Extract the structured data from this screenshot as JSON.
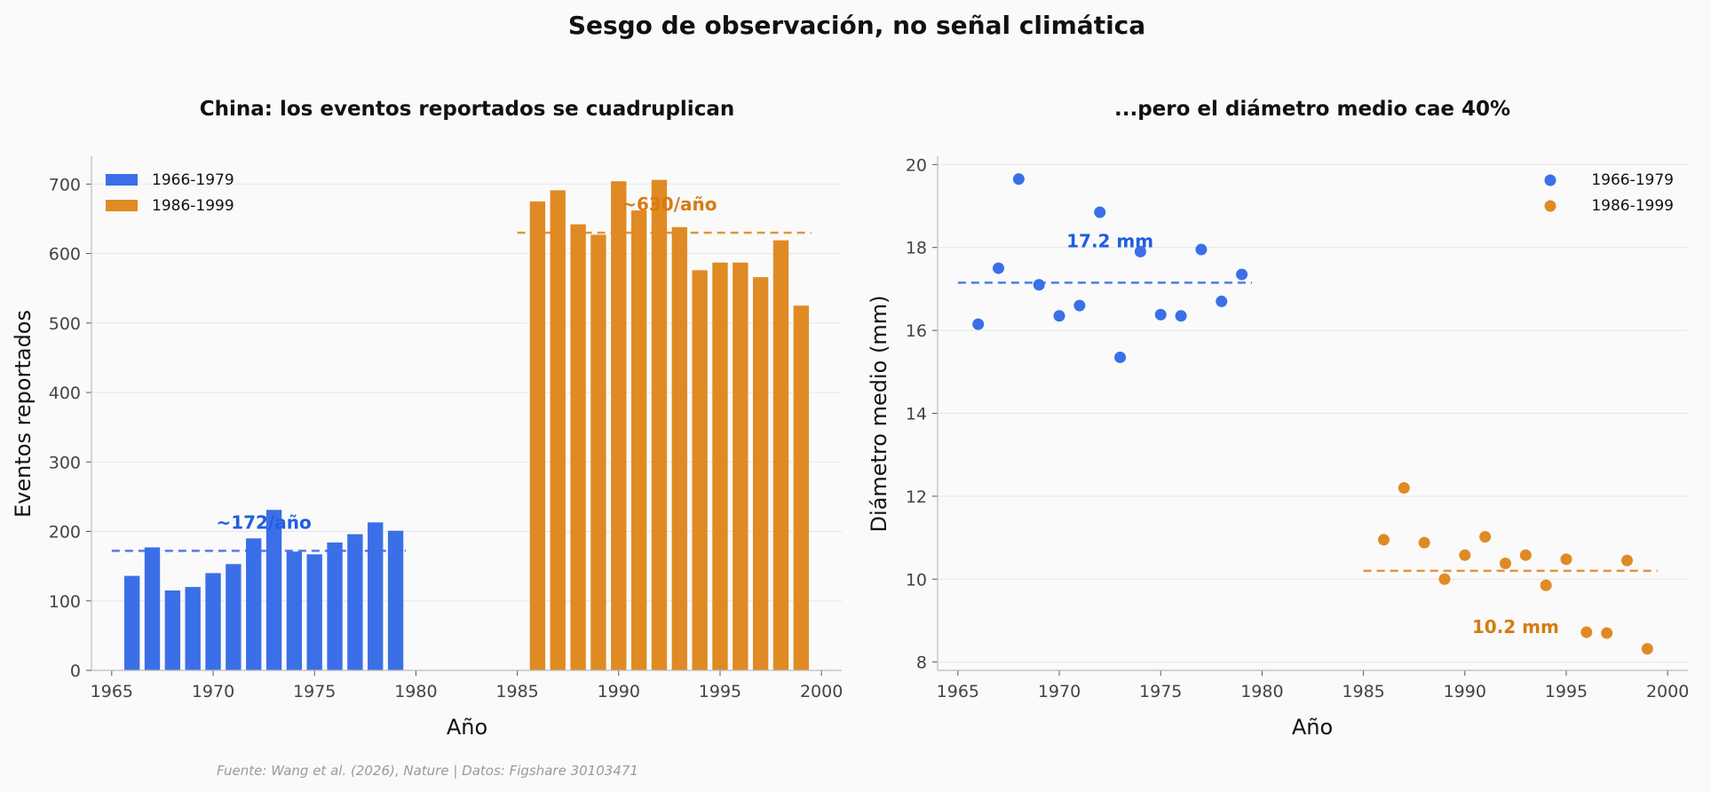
{
  "figure": {
    "suptitle": "Sesgo de observación, no señal climática",
    "footer": "Fuente: Wang et al. (2026), Nature | Datos: Figshare 30103471"
  },
  "colors": {
    "early": "#3b6fe8",
    "late": "#e08a24",
    "early_text": "#1f5ee0",
    "late_text": "#d97a10"
  },
  "chart_data": [
    {
      "type": "bar",
      "title": "China: los eventos reportados se cuadruplican",
      "xlabel": "Año",
      "ylabel": "Eventos reportados",
      "xlim": [
        1964,
        2001
      ],
      "ylim": [
        0,
        740
      ],
      "xticks": [
        1965,
        1970,
        1975,
        1980,
        1985,
        1990,
        1995,
        2000
      ],
      "yticks": [
        0,
        100,
        200,
        300,
        400,
        500,
        600,
        700
      ],
      "grid": "horizontal",
      "legend": "top-left",
      "series": [
        {
          "name": "1966-1979",
          "x": [
            1966,
            1967,
            1968,
            1969,
            1970,
            1971,
            1972,
            1973,
            1974,
            1975,
            1976,
            1977,
            1978,
            1979
          ],
          "values": [
            136,
            177,
            115,
            120,
            140,
            153,
            190,
            231,
            171,
            167,
            184,
            196,
            213,
            201
          ],
          "mean": 172,
          "mean_label": "~172/año"
        },
        {
          "name": "1986-1999",
          "x": [
            1986,
            1987,
            1988,
            1989,
            1990,
            1991,
            1992,
            1993,
            1994,
            1995,
            1996,
            1997,
            1998,
            1999
          ],
          "values": [
            675,
            691,
            642,
            627,
            704,
            662,
            706,
            638,
            576,
            587,
            587,
            566,
            619,
            525
          ],
          "mean": 630,
          "mean_label": "~630/año"
        }
      ]
    },
    {
      "type": "scatter",
      "title": "...pero el diámetro medio cae 40%",
      "xlabel": "Año",
      "ylabel": "Diámetro medio (mm)",
      "xlim": [
        1964,
        2001
      ],
      "ylim": [
        7.8,
        20.2
      ],
      "xticks": [
        1965,
        1970,
        1975,
        1980,
        1985,
        1990,
        1995,
        2000
      ],
      "yticks": [
        8,
        10,
        12,
        14,
        16,
        18,
        20
      ],
      "grid": "horizontal",
      "legend": "top-right",
      "series": [
        {
          "name": "1966-1979",
          "x": [
            1966,
            1967,
            1968,
            1969,
            1970,
            1971,
            1972,
            1973,
            1974,
            1975,
            1976,
            1977,
            1978,
            1979
          ],
          "values": [
            16.15,
            17.5,
            19.65,
            17.1,
            16.35,
            16.6,
            18.85,
            15.35,
            17.9,
            16.38,
            16.35,
            17.95,
            16.7,
            17.35
          ],
          "mean": 17.15,
          "mean_label": "17.2 mm"
        },
        {
          "name": "1986-1999",
          "x": [
            1986,
            1987,
            1988,
            1989,
            1990,
            1991,
            1992,
            1993,
            1994,
            1995,
            1996,
            1997,
            1998,
            1999
          ],
          "values": [
            10.95,
            12.2,
            10.88,
            10.0,
            10.58,
            11.02,
            10.38,
            10.58,
            9.85,
            10.48,
            8.72,
            8.7,
            10.45,
            8.32
          ],
          "mean": 10.2,
          "mean_label": "10.2 mm"
        }
      ]
    }
  ]
}
